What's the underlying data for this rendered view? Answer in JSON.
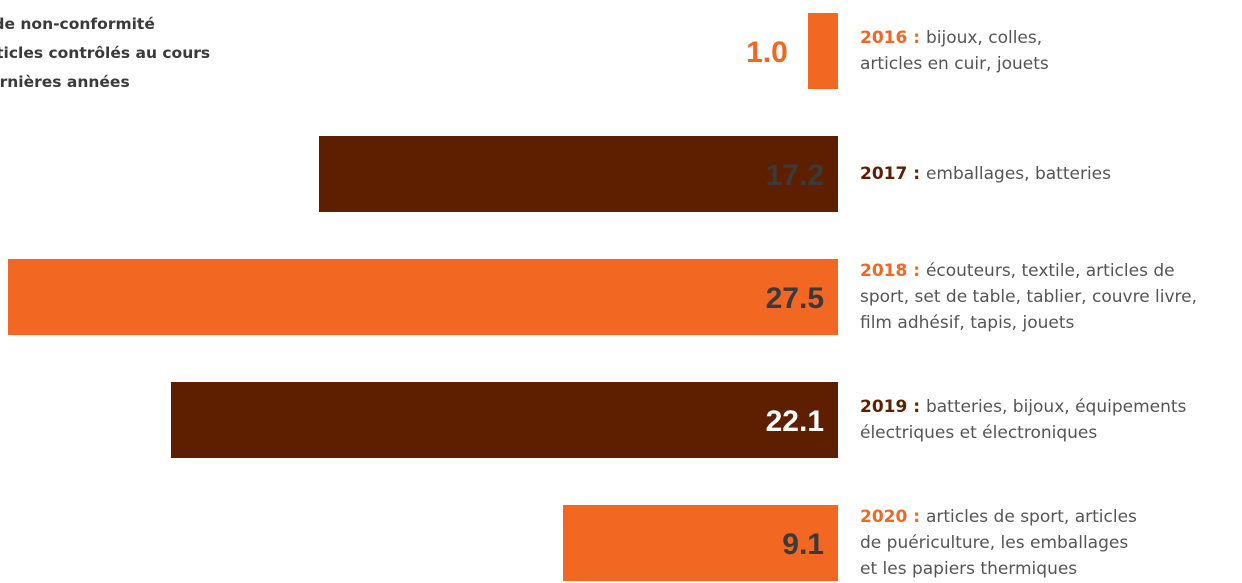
{
  "chart_data": {
    "type": "bar",
    "orientation": "horizontal",
    "title_lines": [
      "x de non-conformité",
      "articles contrôlés au cours",
      "dernières années"
    ],
    "categories": [
      "2016",
      "2017",
      "2018",
      "2019",
      "2020"
    ],
    "values": [
      1.0,
      17.2,
      27.5,
      22.1,
      9.1
    ],
    "value_labels": [
      "1.0",
      "17.2",
      "27.5",
      "22.1",
      "9.1"
    ],
    "year_labels": [
      "2016 :",
      "2017 :",
      "2018 :",
      "2019 :",
      "2020 :"
    ],
    "descriptions": [
      [
        "bijoux, colles,",
        "articles en cuir, jouets"
      ],
      [
        "emballages, batteries"
      ],
      [
        "écouteurs, textile, articles de",
        "sport, set de table, tablier, couvre livre,",
        "film adhésif, tapis, jouets"
      ],
      [
        "batteries, bijoux, équipements",
        "électriques et électroniques"
      ],
      [
        "articles de sport, articles",
        "de puériculture, les emballages",
        "et les papiers thermiques"
      ]
    ],
    "bar_colors": [
      "#f26722",
      "#5e1f00",
      "#f26722",
      "#5e1f00",
      "#f26722"
    ],
    "year_colors": [
      "#f26722",
      "#5e1f00",
      "#f26722",
      "#5e1f00",
      "#f26722"
    ],
    "value_colors": [
      "#f26722",
      "#3a3a3a",
      "#3a3a3a",
      "#ffffff",
      "#3a3a3a"
    ],
    "description_color": "#555555",
    "legend": "none",
    "grid": false
  }
}
